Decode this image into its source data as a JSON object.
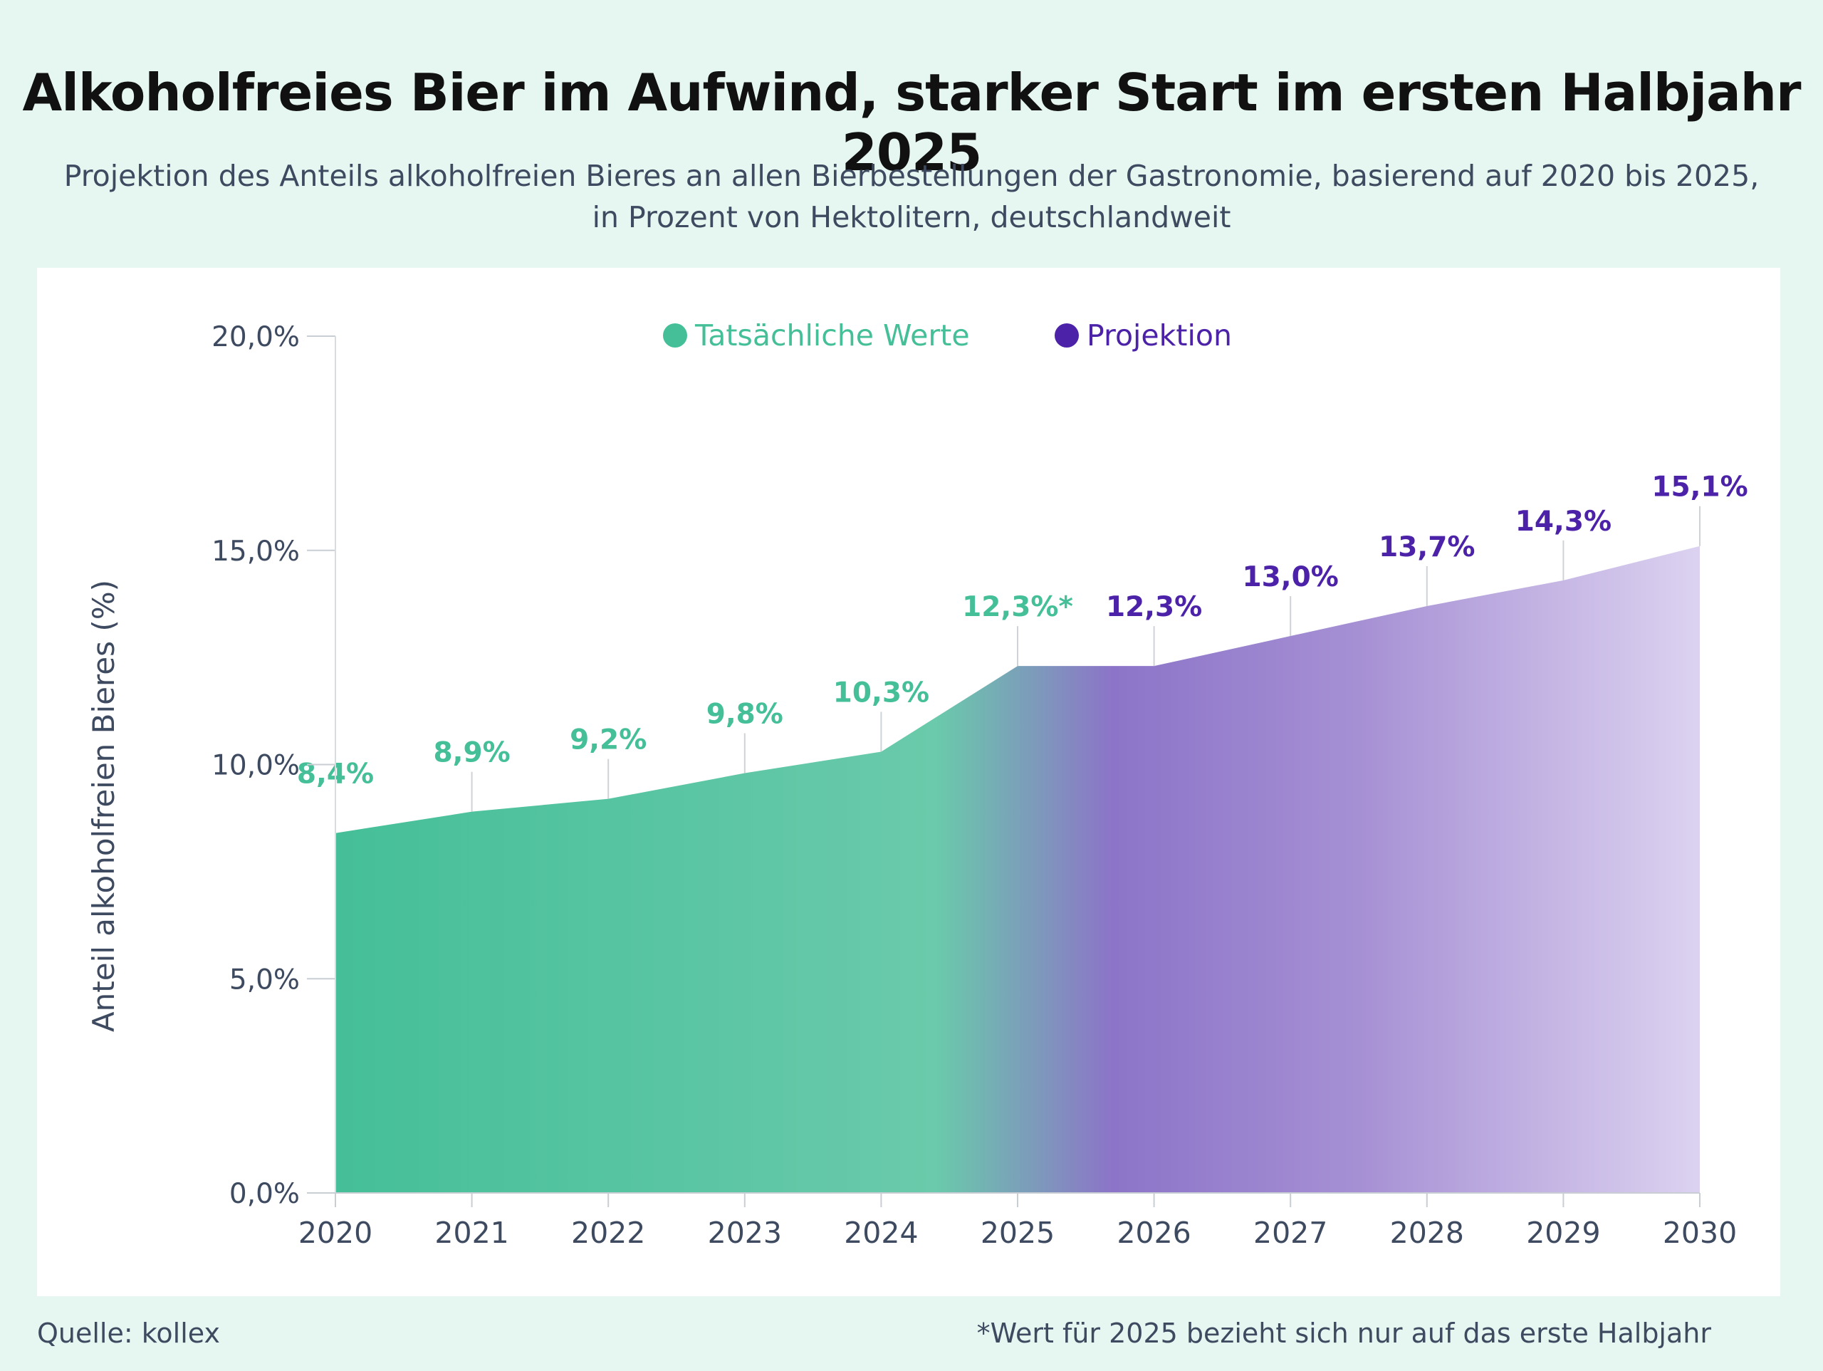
{
  "title": "Alkoholfreies Bier im Aufwind, starker Start im ersten Halbjahr 2025",
  "subtitle_line1": "Projektion des Anteils alkoholfreien Bieres an allen Bierbestellungen der Gastronomie, basierend auf 2020 bis 2025,",
  "subtitle_line2": "in Prozent von Hektolitern, deutschlandweit",
  "source": "Quelle: kollex",
  "footnote": "*Wert für 2025 bezieht sich nur auf das erste Halbjahr",
  "colors": {
    "actual": "#45bf98",
    "projection": "#4b22a8",
    "projection_fill": "#9478cc",
    "axis_text": "#3d4a60"
  },
  "chart_data": {
    "type": "area",
    "ylabel": "Anteil alkoholfreien Bieres (%)",
    "ylim": [
      0,
      20
    ],
    "yticks": [
      0,
      5,
      10,
      15,
      20
    ],
    "ytick_labels": [
      "0,0%",
      "5,0%",
      "10,0%",
      "15,0%",
      "20,0%"
    ],
    "categories": [
      "2020",
      "2021",
      "2022",
      "2023",
      "2024",
      "2025",
      "2026",
      "2027",
      "2028",
      "2029",
      "2030"
    ],
    "legend_position": "top",
    "series": [
      {
        "name": "Tatsächliche Werte",
        "color": "#45bf98",
        "x": [
          "2020",
          "2021",
          "2022",
          "2023",
          "2024",
          "2025"
        ],
        "values": [
          8.4,
          8.9,
          9.2,
          9.8,
          10.3,
          12.3
        ],
        "labels": [
          "8,4%",
          "8,9%",
          "9,2%",
          "9,8%",
          "10,3%",
          "12,3%*"
        ]
      },
      {
        "name": "Projektion",
        "color": "#4b22a8",
        "x": [
          "2026",
          "2027",
          "2028",
          "2029",
          "2030"
        ],
        "values": [
          12.3,
          13.0,
          13.7,
          14.3,
          15.1
        ],
        "labels": [
          "12,3%",
          "13,0%",
          "13,7%",
          "14,3%",
          "15,1%"
        ]
      }
    ]
  }
}
